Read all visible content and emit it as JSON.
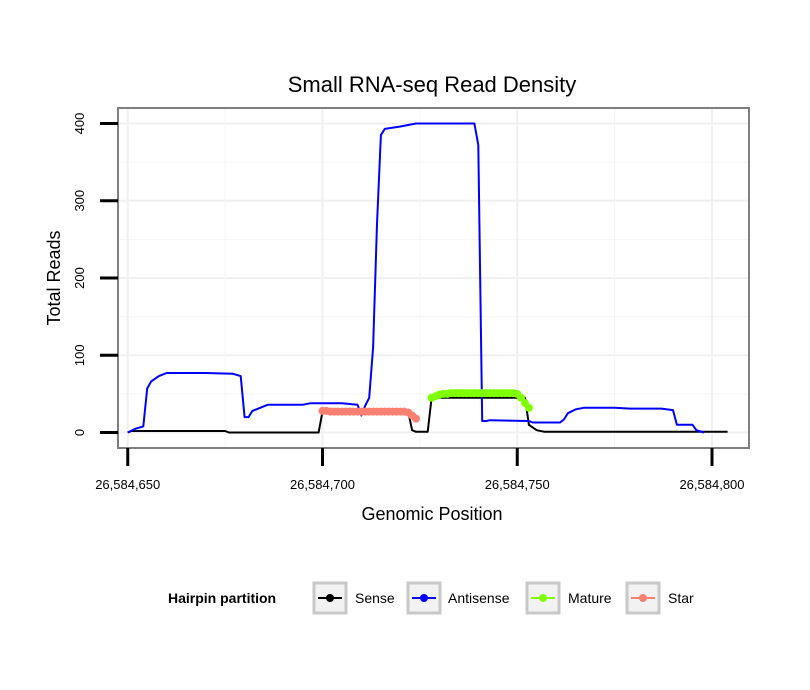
{
  "chart_data": {
    "type": "line",
    "title": "Small RNA-seq Read Density",
    "xlabel": "Genomic Position",
    "ylabel": "Total Reads",
    "xlim": [
      26584647.5,
      26584809.5
    ],
    "ylim": [
      -20,
      420
    ],
    "x_ticks": [
      26584650,
      26584700,
      26584750,
      26584800
    ],
    "x_tick_labels": [
      "26,584,650",
      "26,584,700",
      "26,584,750",
      "26,584,800"
    ],
    "y_ticks": [
      0,
      100,
      200,
      300,
      400
    ],
    "y_tick_labels": [
      "0",
      "100",
      "200",
      "300",
      "400"
    ],
    "grid": true,
    "legend": {
      "title": "Hairpin partition",
      "position": "bottom",
      "entries": [
        "Sense",
        "Antisense",
        "Mature",
        "Star"
      ]
    },
    "series": [
      {
        "name": "Sense",
        "color": "#000000",
        "markers": false,
        "points": [
          [
            26584650,
            0
          ],
          [
            26584651,
            2
          ],
          [
            26584675,
            2
          ],
          [
            26584676,
            0
          ],
          [
            26584699,
            0
          ],
          [
            26584700,
            27
          ],
          [
            26584722,
            27
          ],
          [
            26584723,
            3
          ],
          [
            26584724,
            1
          ],
          [
            26584727,
            1
          ],
          [
            26584728,
            45
          ],
          [
            26584752,
            45
          ],
          [
            26584753,
            10
          ],
          [
            26584755,
            3
          ],
          [
            26584757,
            1
          ],
          [
            26584804,
            1
          ]
        ]
      },
      {
        "name": "Antisense",
        "color": "#0000ff",
        "markers": false,
        "points": [
          [
            26584650,
            0
          ],
          [
            26584652,
            5
          ],
          [
            26584654,
            8
          ],
          [
            26584655,
            57
          ],
          [
            26584656,
            66
          ],
          [
            26584658,
            73
          ],
          [
            26584660,
            77
          ],
          [
            26584662,
            77
          ],
          [
            26584670,
            77
          ],
          [
            26584677,
            76
          ],
          [
            26584679,
            73
          ],
          [
            26584680,
            20
          ],
          [
            26584681,
            20
          ],
          [
            26584682,
            28
          ],
          [
            26584684,
            32
          ],
          [
            26584686,
            36
          ],
          [
            26584695,
            36
          ],
          [
            26584697,
            38
          ],
          [
            26584705,
            38
          ],
          [
            26584709,
            36
          ],
          [
            26584710,
            22
          ],
          [
            26584711,
            35
          ],
          [
            26584712,
            45
          ],
          [
            26584713,
            110
          ],
          [
            26584714,
            270
          ],
          [
            26584715,
            385
          ],
          [
            26584716,
            393
          ],
          [
            26584720,
            396
          ],
          [
            26584722,
            398
          ],
          [
            26584724,
            400
          ],
          [
            26584727,
            400
          ],
          [
            26584735,
            400
          ],
          [
            26584739,
            400
          ],
          [
            26584740,
            372
          ],
          [
            26584741,
            15
          ],
          [
            26584742,
            15
          ],
          [
            26584743,
            16
          ],
          [
            26584753,
            15
          ],
          [
            26584754,
            13
          ],
          [
            26584761,
            13
          ],
          [
            26584762,
            17
          ],
          [
            26584763,
            25
          ],
          [
            26584765,
            30
          ],
          [
            26584767,
            32
          ],
          [
            26584775,
            32
          ],
          [
            26584779,
            31
          ],
          [
            26584787,
            31
          ],
          [
            26584790,
            29
          ],
          [
            26584791,
            10
          ],
          [
            26584795,
            10
          ],
          [
            26584796,
            3
          ],
          [
            26584798,
            0
          ]
        ]
      },
      {
        "name": "Mature",
        "color": "#7fff00",
        "markers": true,
        "points": [
          [
            26584728,
            45
          ],
          [
            26584729,
            47
          ],
          [
            26584730,
            49
          ],
          [
            26584731,
            50
          ],
          [
            26584732,
            50
          ],
          [
            26584733,
            51
          ],
          [
            26584734,
            51
          ],
          [
            26584735,
            51
          ],
          [
            26584736,
            51
          ],
          [
            26584737,
            51
          ],
          [
            26584738,
            51
          ],
          [
            26584739,
            51
          ],
          [
            26584740,
            51
          ],
          [
            26584741,
            51
          ],
          [
            26584742,
            51
          ],
          [
            26584743,
            51
          ],
          [
            26584744,
            51
          ],
          [
            26584745,
            51
          ],
          [
            26584746,
            51
          ],
          [
            26584747,
            51
          ],
          [
            26584748,
            51
          ],
          [
            26584749,
            51
          ],
          [
            26584750,
            50
          ],
          [
            26584751,
            45
          ],
          [
            26584752,
            38
          ],
          [
            26584753,
            32
          ]
        ]
      },
      {
        "name": "Star",
        "color": "#fa8072",
        "markers": true,
        "points": [
          [
            26584700,
            28
          ],
          [
            26584701,
            28
          ],
          [
            26584702,
            27
          ],
          [
            26584703,
            27
          ],
          [
            26584704,
            27
          ],
          [
            26584705,
            27
          ],
          [
            26584706,
            27
          ],
          [
            26584707,
            27
          ],
          [
            26584708,
            27
          ],
          [
            26584709,
            27
          ],
          [
            26584710,
            27
          ],
          [
            26584711,
            27
          ],
          [
            26584712,
            27
          ],
          [
            26584713,
            27
          ],
          [
            26584714,
            27
          ],
          [
            26584715,
            27
          ],
          [
            26584716,
            27
          ],
          [
            26584717,
            27
          ],
          [
            26584718,
            27
          ],
          [
            26584719,
            27
          ],
          [
            26584720,
            27
          ],
          [
            26584721,
            27
          ],
          [
            26584722,
            26
          ],
          [
            26584723,
            22
          ],
          [
            26584724,
            18
          ]
        ]
      }
    ]
  }
}
